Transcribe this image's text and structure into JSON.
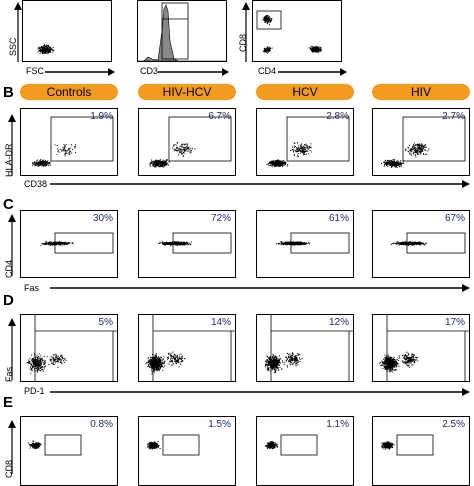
{
  "section_a": {
    "axes": {
      "ssc": "SSC",
      "fsc": "FSC",
      "cd3": "CD3",
      "cd8": "CD8",
      "cd4": "CD4"
    }
  },
  "section_b": {
    "letter": "B",
    "groups": [
      "Controls",
      "HIV-HCV",
      "HCV",
      "HIV"
    ],
    "y_label": "HLA-DR",
    "x_label": "CD38",
    "percents": [
      "1.9%",
      "6.7%",
      "2.8%",
      "2.7%"
    ]
  },
  "section_c": {
    "letter": "C",
    "y_label": "CD4",
    "x_label": "Fas",
    "percents": [
      "30%",
      "72%",
      "61%",
      "67%"
    ]
  },
  "section_d": {
    "letter": "D",
    "y_label": "Fas",
    "x_label": "PD-1",
    "percents": [
      "5%",
      "14%",
      "12%",
      "17%"
    ]
  },
  "section_e": {
    "letter": "E",
    "y_label": "CD8",
    "percents": [
      "0.8%",
      "1.5%",
      "1.1%",
      "2.5%"
    ]
  },
  "colors": {
    "pill": "#f29a1d",
    "percent_text": "#1f2a6b",
    "histogram_fill": "#888888"
  }
}
